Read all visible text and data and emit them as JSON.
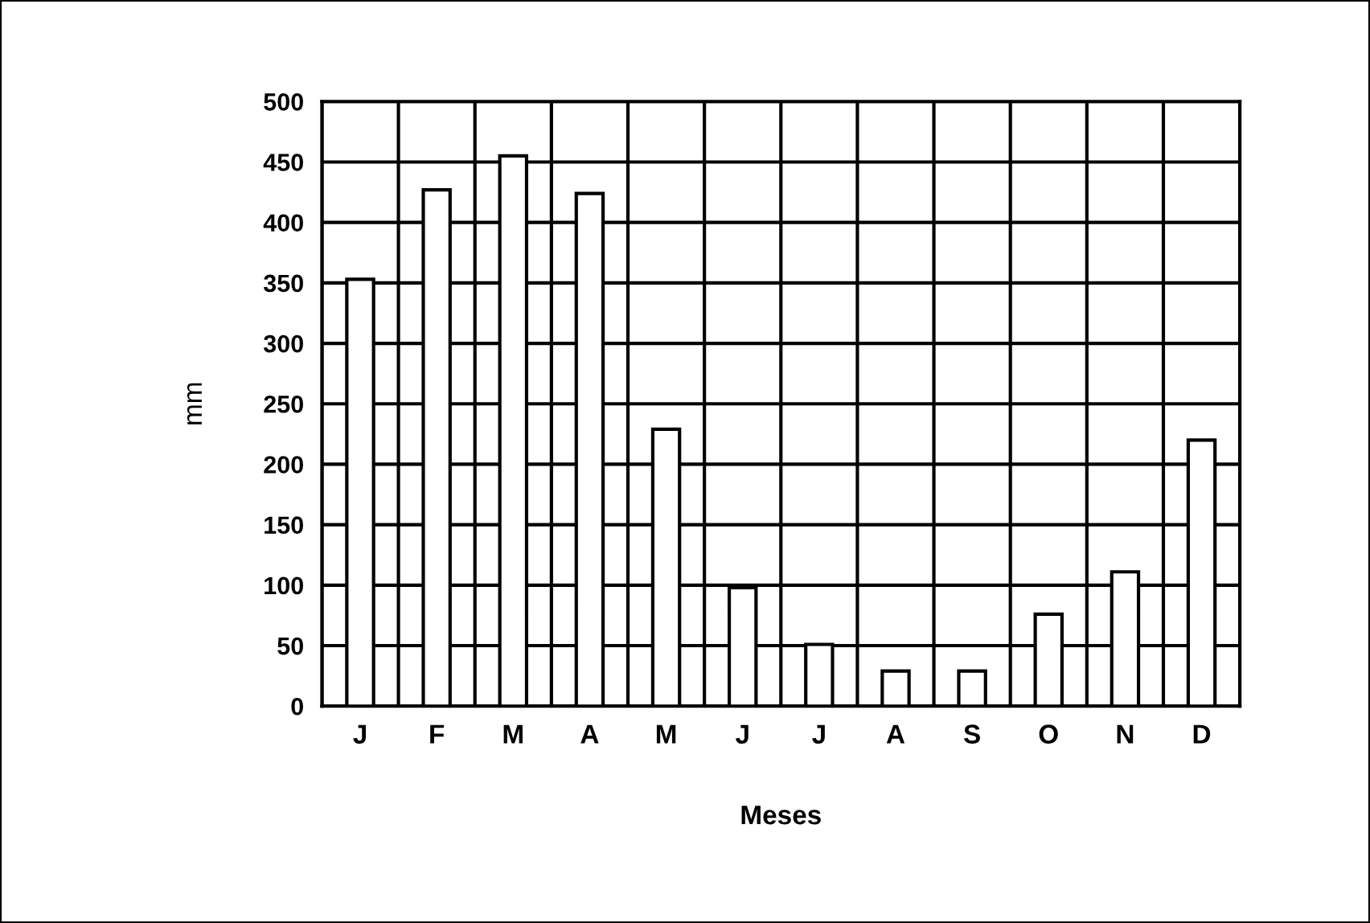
{
  "chart_data": {
    "type": "bar",
    "xlabel": "Meses",
    "ylabel": "mm",
    "categories": [
      "J",
      "F",
      "M",
      "A",
      "M",
      "J",
      "J",
      "A",
      "S",
      "O",
      "N",
      "D"
    ],
    "values": [
      353,
      427,
      455,
      424,
      229,
      98,
      51,
      29,
      29,
      76,
      111,
      220
    ],
    "color": "#ffffff",
    "ylim": [
      0,
      500
    ],
    "yticks": [
      0,
      50,
      100,
      150,
      200,
      250,
      300,
      350,
      400,
      450,
      500
    ],
    "grid": true
  }
}
